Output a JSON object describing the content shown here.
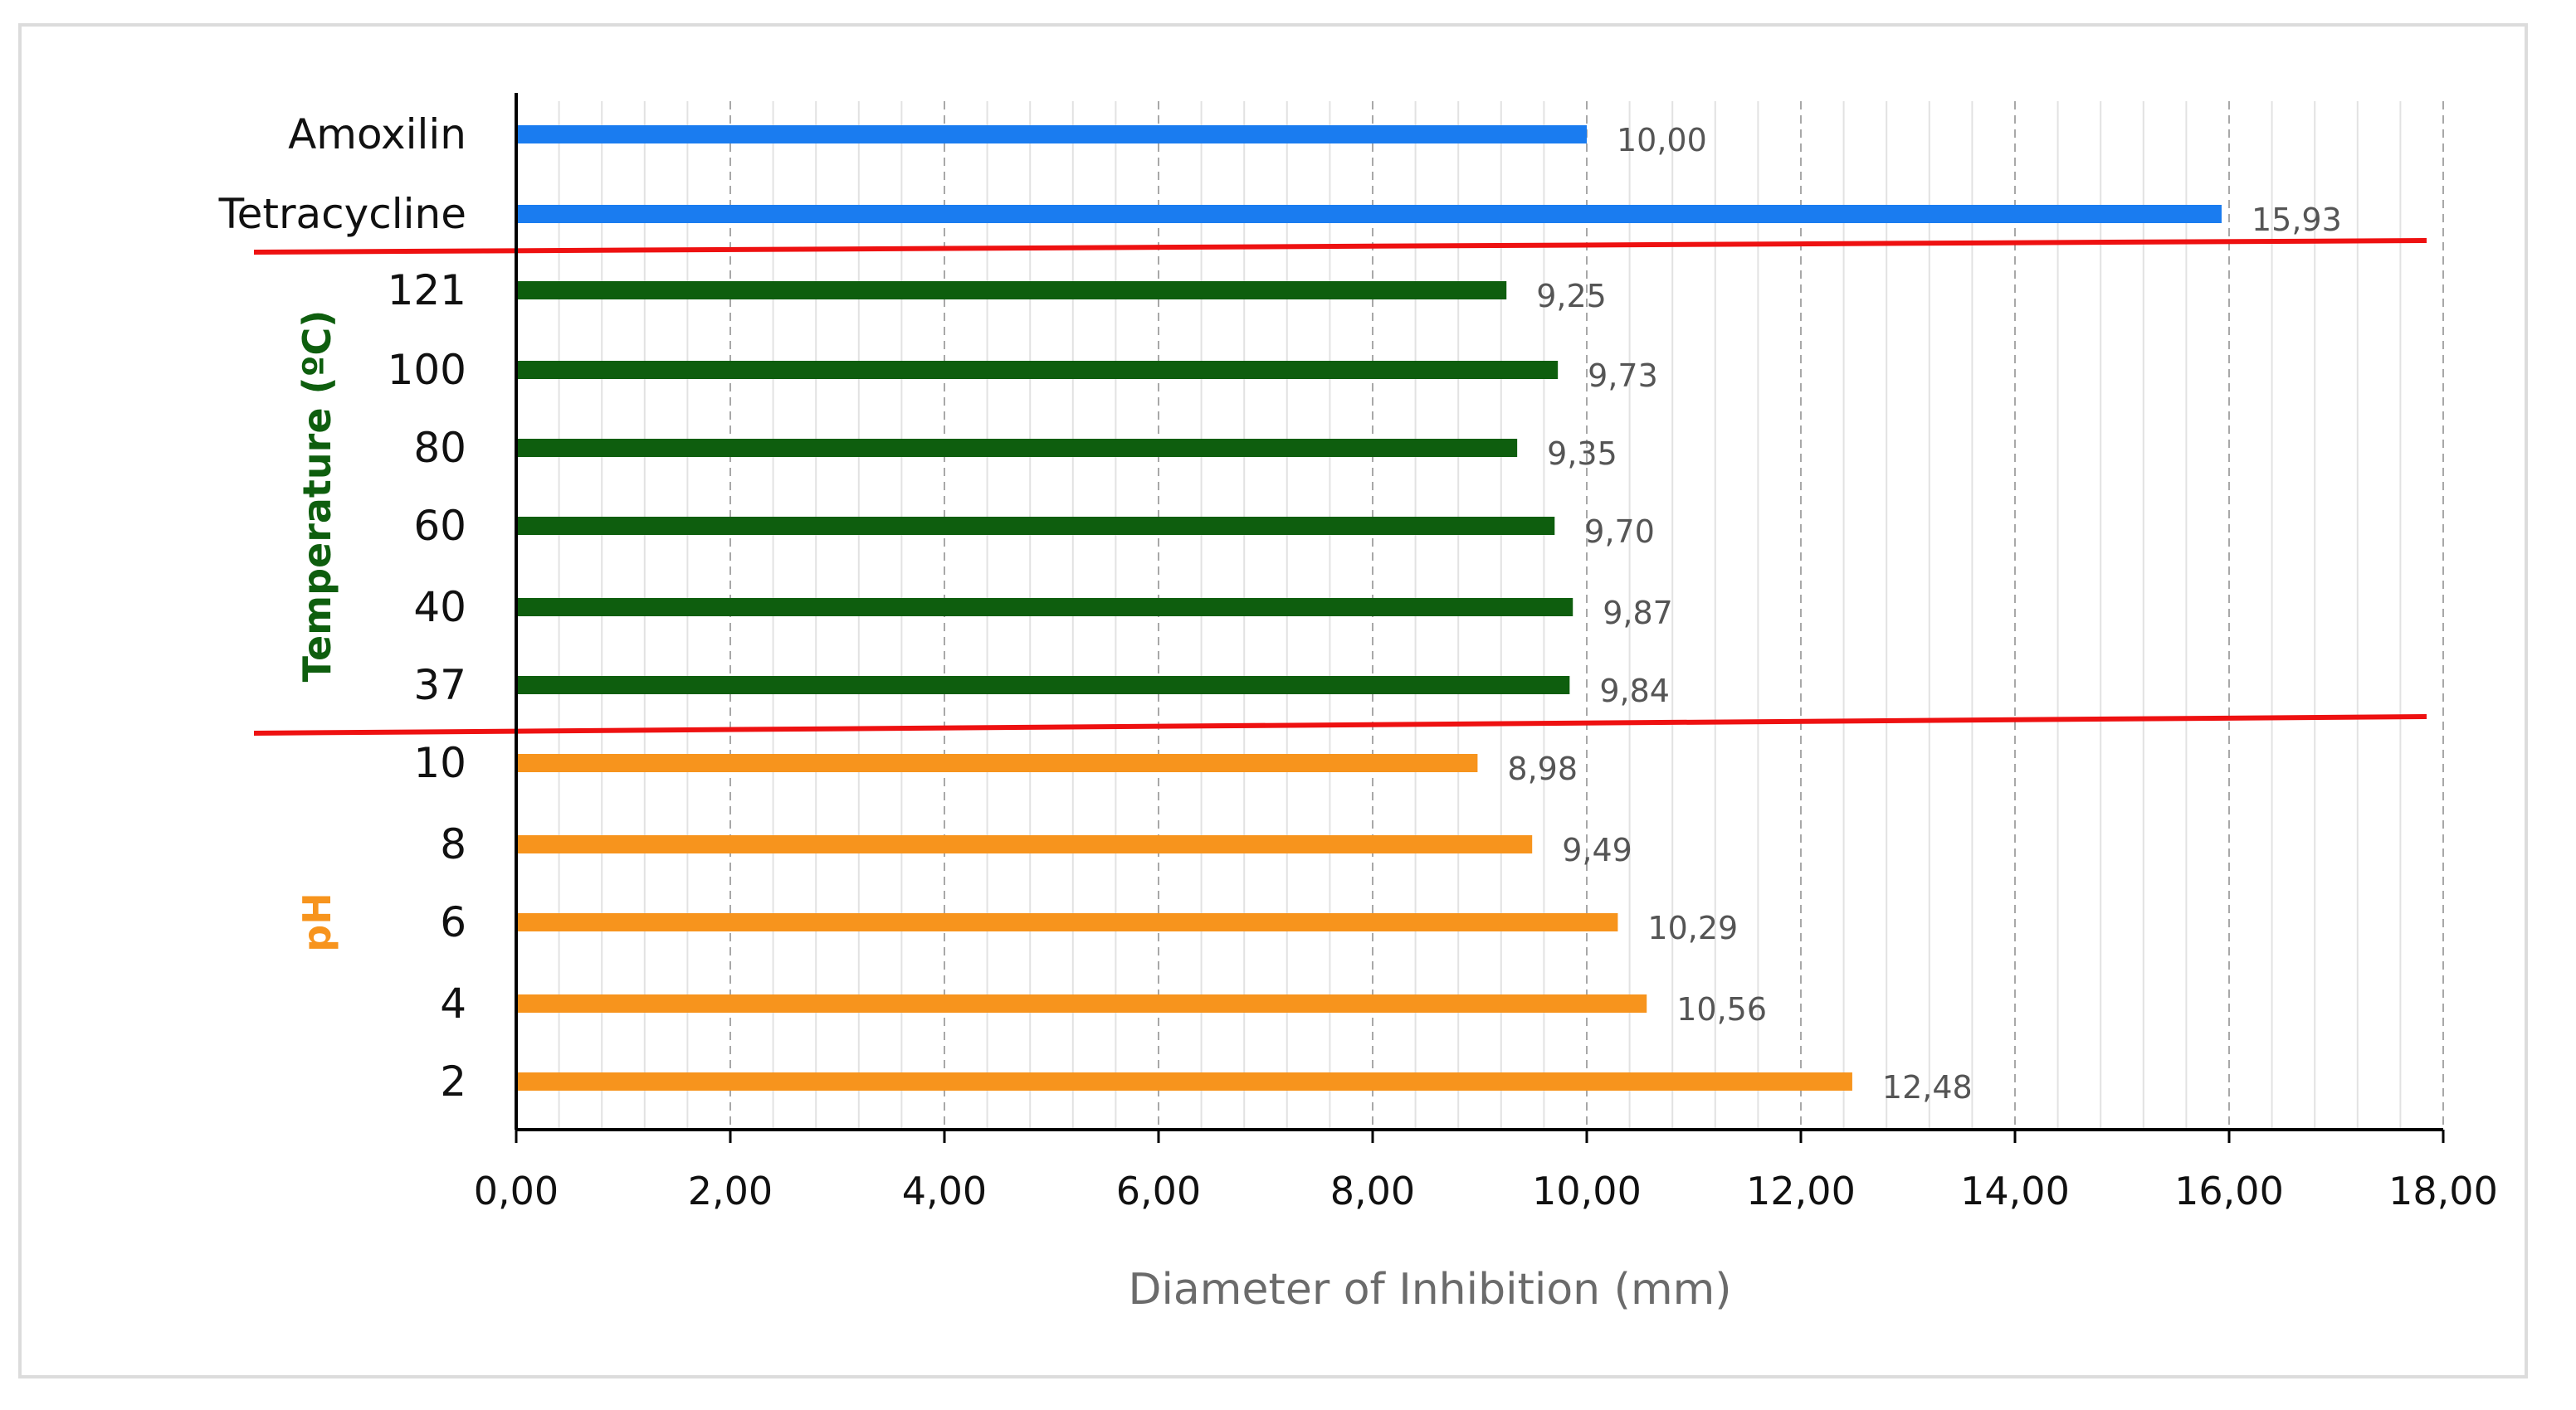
{
  "chart_data": {
    "type": "bar",
    "orientation": "horizontal",
    "xlabel": "Diameter of Inhibition (mm)",
    "xlim": [
      0,
      18
    ],
    "xticks": [
      "0,00",
      "2,00",
      "4,00",
      "6,00",
      "8,00",
      "10,00",
      "12,00",
      "14,00",
      "16,00",
      "18,00"
    ],
    "grid": "vertical, dashed major and light minor lines",
    "groups": [
      {
        "label": "",
        "color": "#1a7cf0",
        "bars": [
          {
            "category": "Amoxilin",
            "value": 10.0,
            "value_label": "10,00"
          },
          {
            "category": "Tetracycline",
            "value": 15.93,
            "value_label": "15,93"
          }
        ]
      },
      {
        "label": "Temperature (ºC)",
        "color": "#0e5e0e",
        "bars": [
          {
            "category": "121",
            "value": 9.25,
            "value_label": "9,25"
          },
          {
            "category": "100",
            "value": 9.73,
            "value_label": "9,73"
          },
          {
            "category": "80",
            "value": 9.35,
            "value_label": "9,35"
          },
          {
            "category": "60",
            "value": 9.7,
            "value_label": "9,70"
          },
          {
            "category": "40",
            "value": 9.87,
            "value_label": "9,87"
          },
          {
            "category": "37",
            "value": 9.84,
            "value_label": "9,84"
          }
        ]
      },
      {
        "label": "pH",
        "color": "#f7941d",
        "bars": [
          {
            "category": "10",
            "value": 8.98,
            "value_label": "8,98"
          },
          {
            "category": "8",
            "value": 9.49,
            "value_label": "9,49"
          },
          {
            "category": "6",
            "value": 10.29,
            "value_label": "10,29"
          },
          {
            "category": "4",
            "value": 10.56,
            "value_label": "10,56"
          },
          {
            "category": "2",
            "value": 12.48,
            "value_label": "12,48"
          }
        ]
      }
    ],
    "separator_color": "#ee1111"
  }
}
